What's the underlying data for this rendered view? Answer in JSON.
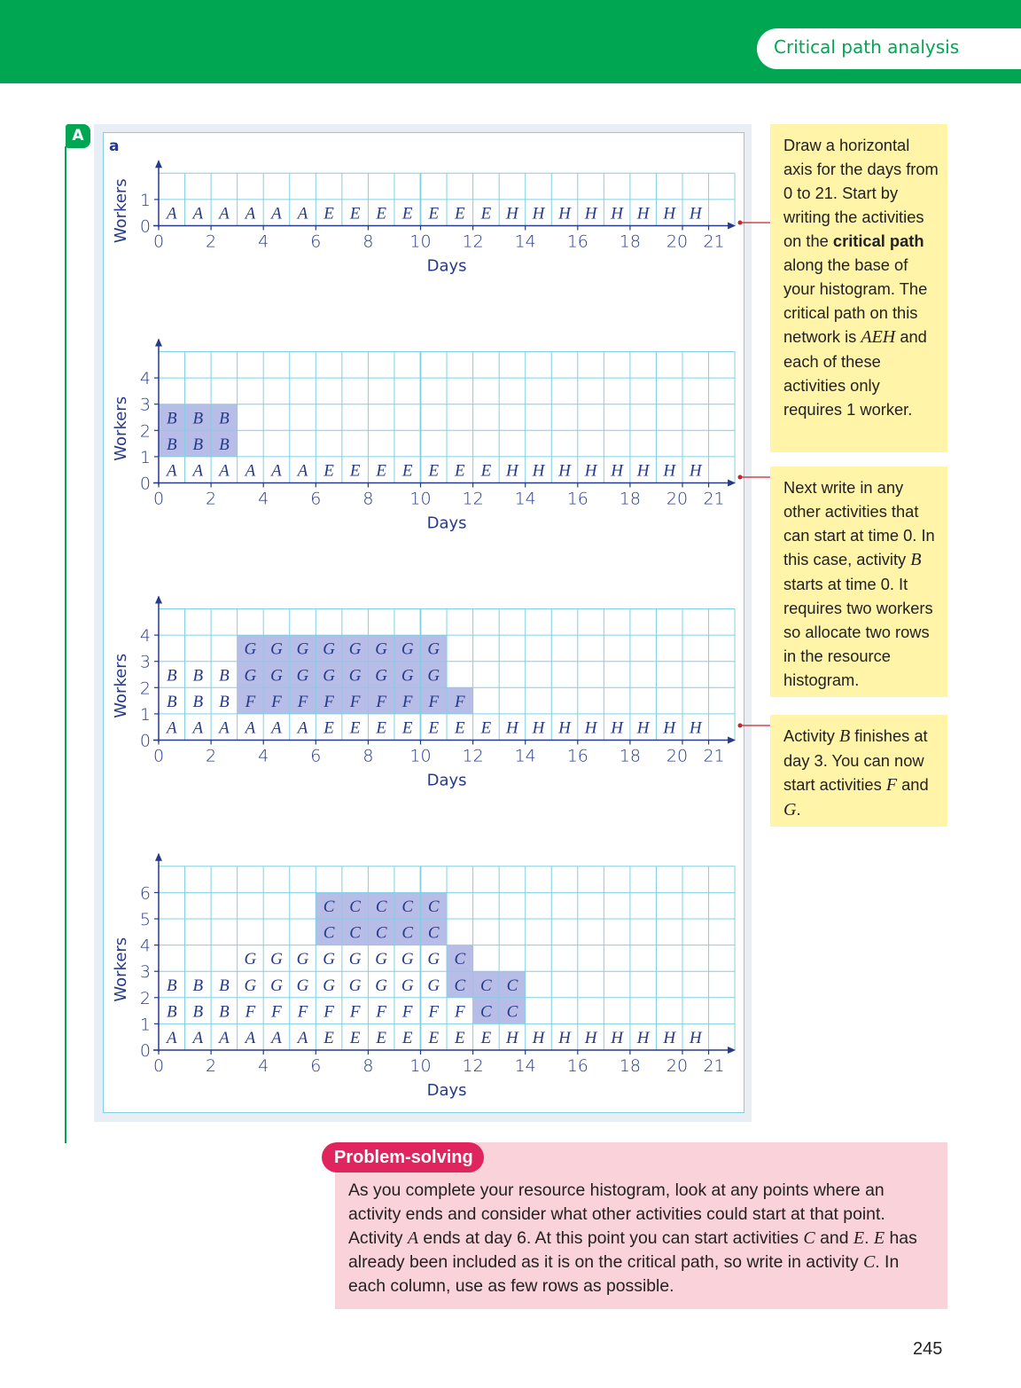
{
  "header": {
    "section_title": "Critical path analysis"
  },
  "example": {
    "marker": "A",
    "part": "a"
  },
  "chart_common": {
    "ylabel": "Workers",
    "xlabel": "Days",
    "xtick_labels": [
      "0",
      "2",
      "4",
      "6",
      "8",
      "10",
      "12",
      "14",
      "16",
      "18",
      "20",
      "21"
    ],
    "xtick_values": [
      0,
      2,
      4,
      6,
      8,
      10,
      12,
      14,
      16,
      18,
      20,
      21
    ],
    "xlim": [
      0,
      22
    ],
    "grid": true,
    "shaded_color": "#b8bde8",
    "grid_color": "#7fd0e6",
    "axis_color": "#253a8a"
  },
  "chart_data": [
    {
      "type": "table",
      "ylim": [
        0,
        1
      ],
      "ytick_labels": [
        "0",
        "1"
      ],
      "grid_rows": 2,
      "rows": [
        [
          "A",
          "A",
          "A",
          "A",
          "A",
          "A",
          "E",
          "E",
          "E",
          "E",
          "E",
          "E",
          "E",
          "H",
          "H",
          "H",
          "H",
          "H",
          "H",
          "H",
          "H"
        ]
      ],
      "shaded": []
    },
    {
      "type": "table",
      "ylim": [
        0,
        4
      ],
      "ytick_labels": [
        "0",
        "1",
        "2",
        "3",
        "4"
      ],
      "grid_rows": 5,
      "rows": [
        [
          "A",
          "A",
          "A",
          "A",
          "A",
          "A",
          "E",
          "E",
          "E",
          "E",
          "E",
          "E",
          "E",
          "H",
          "H",
          "H",
          "H",
          "H",
          "H",
          "H",
          "H"
        ],
        [
          "B",
          "B",
          "B"
        ],
        [
          "B",
          "B",
          "B"
        ]
      ],
      "shaded": [
        [
          1,
          0
        ],
        [
          1,
          1
        ],
        [
          1,
          2
        ],
        [
          2,
          0
        ],
        [
          2,
          1
        ],
        [
          2,
          2
        ]
      ]
    },
    {
      "type": "table",
      "ylim": [
        0,
        4
      ],
      "ytick_labels": [
        "0",
        "1",
        "2",
        "3",
        "4"
      ],
      "grid_rows": 5,
      "rows": [
        [
          "A",
          "A",
          "A",
          "A",
          "A",
          "A",
          "E",
          "E",
          "E",
          "E",
          "E",
          "E",
          "E",
          "H",
          "H",
          "H",
          "H",
          "H",
          "H",
          "H",
          "H"
        ],
        [
          "B",
          "B",
          "B",
          "F",
          "F",
          "F",
          "F",
          "F",
          "F",
          "F",
          "F",
          "F"
        ],
        [
          "B",
          "B",
          "B",
          "G",
          "G",
          "G",
          "G",
          "G",
          "G",
          "G",
          "G"
        ],
        [
          "",
          "",
          "",
          "G",
          "G",
          "G",
          "G",
          "G",
          "G",
          "G",
          "G"
        ]
      ],
      "shaded": [
        [
          1,
          3
        ],
        [
          1,
          4
        ],
        [
          1,
          5
        ],
        [
          1,
          6
        ],
        [
          1,
          7
        ],
        [
          1,
          8
        ],
        [
          1,
          9
        ],
        [
          1,
          10
        ],
        [
          1,
          11
        ],
        [
          2,
          3
        ],
        [
          2,
          4
        ],
        [
          2,
          5
        ],
        [
          2,
          6
        ],
        [
          2,
          7
        ],
        [
          2,
          8
        ],
        [
          2,
          9
        ],
        [
          2,
          10
        ],
        [
          3,
          3
        ],
        [
          3,
          4
        ],
        [
          3,
          5
        ],
        [
          3,
          6
        ],
        [
          3,
          7
        ],
        [
          3,
          8
        ],
        [
          3,
          9
        ],
        [
          3,
          10
        ]
      ]
    },
    {
      "type": "table",
      "ylim": [
        0,
        6
      ],
      "ytick_labels": [
        "0",
        "1",
        "2",
        "3",
        "4",
        "5",
        "6"
      ],
      "grid_rows": 7,
      "rows": [
        [
          "A",
          "A",
          "A",
          "A",
          "A",
          "A",
          "E",
          "E",
          "E",
          "E",
          "E",
          "E",
          "E",
          "H",
          "H",
          "H",
          "H",
          "H",
          "H",
          "H",
          "H"
        ],
        [
          "B",
          "B",
          "B",
          "F",
          "F",
          "F",
          "F",
          "F",
          "F",
          "F",
          "F",
          "F",
          "C",
          "C"
        ],
        [
          "B",
          "B",
          "B",
          "G",
          "G",
          "G",
          "G",
          "G",
          "G",
          "G",
          "G",
          "C",
          "C",
          "C"
        ],
        [
          "",
          "",
          "",
          "G",
          "G",
          "G",
          "G",
          "G",
          "G",
          "G",
          "G",
          "C"
        ],
        [
          "",
          "",
          "",
          "",
          "",
          "",
          "C",
          "C",
          "C",
          "C",
          "C"
        ],
        [
          "",
          "",
          "",
          "",
          "",
          "",
          "C",
          "C",
          "C",
          "C",
          "C"
        ]
      ],
      "shaded": [
        [
          1,
          12
        ],
        [
          1,
          13
        ],
        [
          2,
          11
        ],
        [
          2,
          12
        ],
        [
          2,
          13
        ],
        [
          3,
          11
        ],
        [
          4,
          6
        ],
        [
          4,
          7
        ],
        [
          4,
          8
        ],
        [
          4,
          9
        ],
        [
          4,
          10
        ],
        [
          5,
          6
        ],
        [
          5,
          7
        ],
        [
          5,
          8
        ],
        [
          5,
          9
        ],
        [
          5,
          10
        ]
      ]
    }
  ],
  "notes": {
    "n1": {
      "t1": "Draw a horizontal axis for the days from 0 to 21.",
      "t2": "Start by writing the activities on the ",
      "t3": "critical path",
      "t4": " along the base of your histogram. The critical path on this network is ",
      "t5": "AEH",
      "t6": " and each of these activities only requires 1 worker."
    },
    "n2": {
      "t1": "Next write in any other activities that can start at time 0. In this case, activity ",
      "t2": "B",
      "t3": " starts at time 0. It requires two workers so allocate two rows in the resource histogram."
    },
    "n3": {
      "t1": "Activity ",
      "t2": "B",
      "t3": " finishes at day 3. You can now start activities ",
      "t4": "F",
      "t5": " and ",
      "t6": "G",
      "t7": "."
    }
  },
  "problem_solving": {
    "title": "Problem-solving",
    "t1": "As you complete your resource histogram, look at any points where an activity ends and consider what other activities could start at that point. Activity ",
    "t2": "A",
    "t3": " ends at day 6. At this point you can start activities ",
    "t4": "C",
    "t5": " and ",
    "t6": "E",
    "t7": ". ",
    "t8": "E",
    "t9": " has already been included as it is on the critical path, so write in activity ",
    "t10": "C",
    "t11": ". In each column, use as few rows as possible."
  },
  "page_number": "245"
}
